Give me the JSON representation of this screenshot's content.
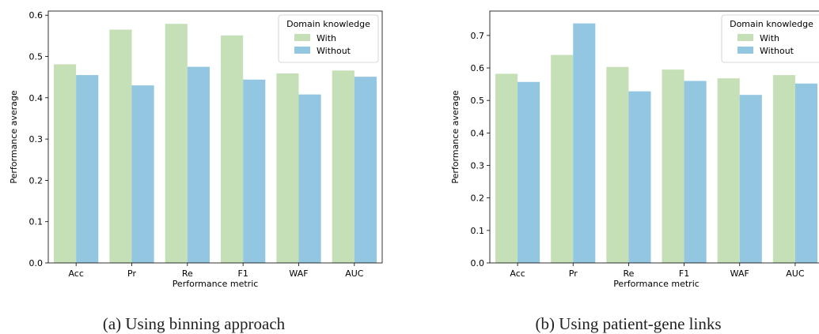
{
  "chart_data": [
    {
      "type": "bar",
      "caption": "(a) Using binning approach",
      "categories": [
        "Acc",
        "Pr",
        "Re",
        "F1",
        "WAF",
        "AUC"
      ],
      "series": [
        {
          "name": "With",
          "values": [
            0.481,
            0.565,
            0.579,
            0.551,
            0.459,
            0.466
          ]
        },
        {
          "name": "Without",
          "values": [
            0.455,
            0.43,
            0.475,
            0.444,
            0.408,
            0.451
          ]
        }
      ],
      "xlabel": "Performance metric",
      "ylabel": "Performance average",
      "ylim": [
        0,
        0.61
      ],
      "yticks": [
        0.0,
        0.1,
        0.2,
        0.3,
        0.4,
        0.5,
        0.6
      ],
      "ytick_labels": [
        "0.0",
        "0.1",
        "0.2",
        "0.3",
        "0.4",
        "0.5",
        "0.6"
      ],
      "legend_title": "Domain knowledge",
      "legend_position": "top-right",
      "colors": {
        "With": "#c5dfb7",
        "Without": "#92c6e1"
      },
      "grid": false
    },
    {
      "type": "bar",
      "caption": "(b) Using patient-gene links",
      "categories": [
        "Acc",
        "Pr",
        "Re",
        "F1",
        "WAF",
        "AUC"
      ],
      "series": [
        {
          "name": "With",
          "values": [
            0.582,
            0.64,
            0.603,
            0.595,
            0.568,
            0.578
          ]
        },
        {
          "name": "Without",
          "values": [
            0.557,
            0.737,
            0.528,
            0.56,
            0.517,
            0.552
          ]
        }
      ],
      "xlabel": "Performance metric",
      "ylabel": "Performance average",
      "ylim": [
        0,
        0.775
      ],
      "yticks": [
        0.0,
        0.1,
        0.2,
        0.3,
        0.4,
        0.5,
        0.6,
        0.7
      ],
      "ytick_labels": [
        "0.0",
        "0.1",
        "0.2",
        "0.3",
        "0.4",
        "0.5",
        "0.6",
        "0.7"
      ],
      "legend_title": "Domain knowledge",
      "legend_position": "top-right",
      "colors": {
        "With": "#c5dfb7",
        "Without": "#92c6e1"
      },
      "grid": false
    }
  ]
}
